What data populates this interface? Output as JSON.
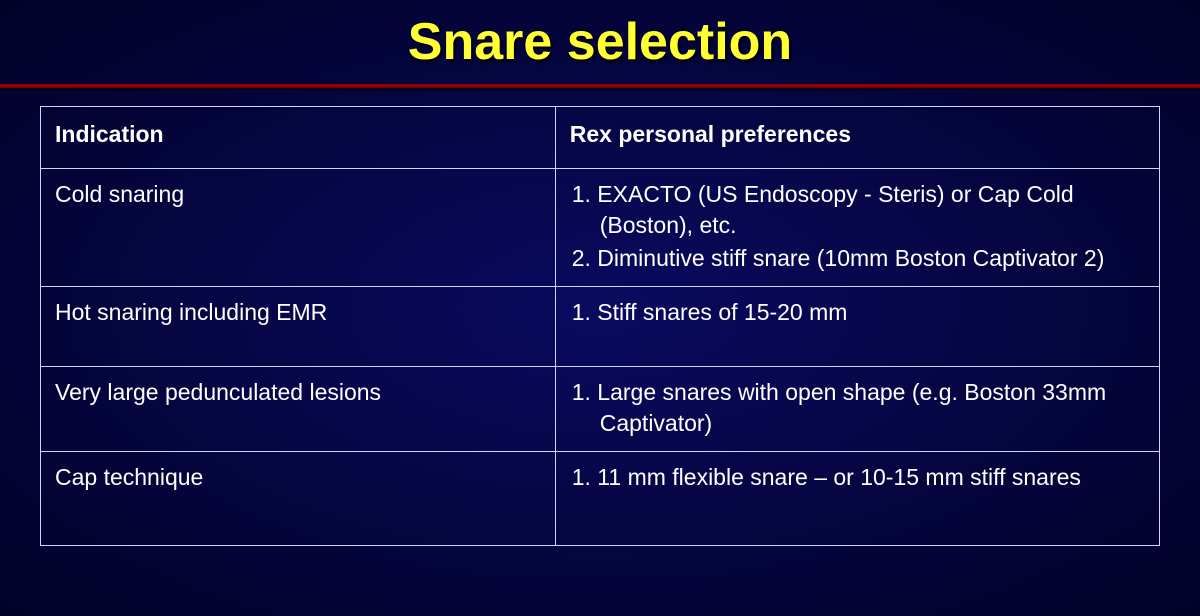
{
  "slide": {
    "title": "Snare selection",
    "background_gradient": [
      "#0a0a60",
      "#050540",
      "#020228"
    ],
    "divider_color": "#8b0000",
    "text_color": "#ffffff",
    "title_color": "#ffff33",
    "border_color": "#cfd4ff",
    "title_fontsize": 52,
    "body_fontsize": 23,
    "table": {
      "columns": [
        "Indication",
        "Rex personal preferences"
      ],
      "column_widths_pct": [
        46,
        54
      ],
      "rows": [
        {
          "indication": "Cold snaring",
          "items": [
            "1.  EXACTO (US Endoscopy - Steris) or Cap Cold (Boston), etc.",
            "2.  Diminutive stiff snare (10mm Boston Captivator 2)"
          ]
        },
        {
          "indication": "Hot snaring including EMR",
          "items": [
            "1. Stiff snares of 15-20 mm"
          ]
        },
        {
          "indication": "Very large pedunculated lesions",
          "items": [
            "1.  Large snares with open shape (e.g. Boston 33mm Captivator)"
          ]
        },
        {
          "indication": "Cap technique",
          "items": [
            "1. 11 mm flexible snare – or 10-15 mm stiff snares"
          ]
        }
      ]
    }
  }
}
